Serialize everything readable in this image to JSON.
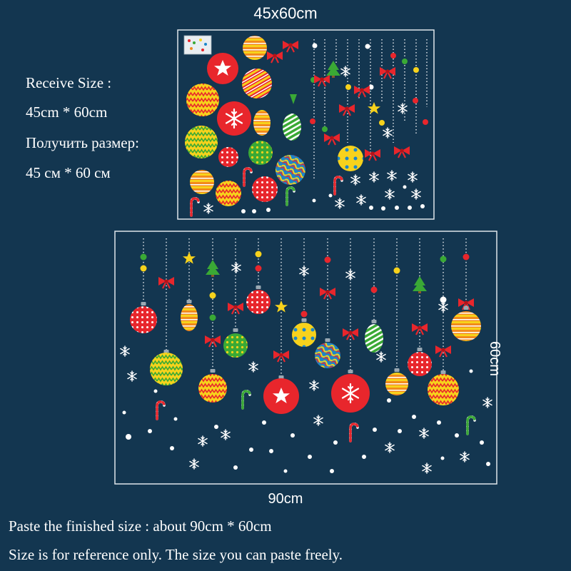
{
  "colors": {
    "background": "#133650",
    "text": "#ffffff",
    "frame": "#dfe6ea",
    "red": "#e8262c",
    "yellow": "#f7d21c",
    "green": "#3aa935",
    "orange": "#f28a1c",
    "blue": "#1b86c9",
    "white": "#ffffff"
  },
  "sheet": {
    "size_label": "45x60cm"
  },
  "receive_info": {
    "line1": "Receive Size :",
    "line2": "45cm * 60cm",
    "line3": "Получить размер:",
    "line4": "45 см * 60 см"
  },
  "finished": {
    "width_label": "90cm",
    "height_label": "60cm"
  },
  "notes": {
    "line1": "Paste the finished size : about 90cm * 60cm",
    "line2": "Size is for reference only. The size you can paste freely."
  },
  "decor": {
    "ornament_icon": "christmas-ornament-icon",
    "snowflake_icon": "snowflake-icon",
    "bow_icon": "bow-icon",
    "star_icon": "star-icon",
    "tree_icon": "christmas-tree-icon",
    "candy_cane_icon": "candy-cane-icon"
  }
}
